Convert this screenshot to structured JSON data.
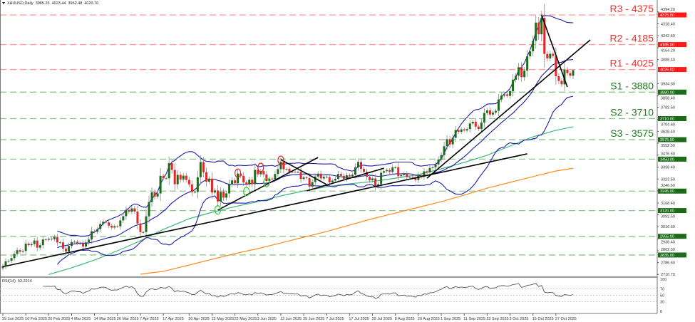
{
  "header": {
    "symbol": "XAUUSD,Daily",
    "open": "3985.23",
    "high": "4023.44",
    "low": "3962.48",
    "close": "4020.76"
  },
  "rsi_header": {
    "label": "RSI(14)",
    "value": "52.2214"
  },
  "colors": {
    "up": "#1e6b1e",
    "down": "#e3262b",
    "wick": "#8a8a8a",
    "bollinger": "#1c1ca8",
    "ma_green": "#3cb878",
    "ma_orange": "#ff8c1a",
    "resistance": "#ff2a2a",
    "support": "#1f7a1f",
    "trendline": "#000000",
    "rsi": "#555555"
  },
  "chart_data": [
    {
      "type": "candlestick",
      "title": "XAUUSD,Daily",
      "x_tick_labels": [
        "29 Jan 2025",
        "10 Feb 2025",
        "20 Feb 2025",
        "4 Mar 2025",
        "14 Mar 2025",
        "26 Mar 2025",
        "7 Apr 2025",
        "17 Apr 2025",
        "30 Apr 2025",
        "12 May 2025",
        "22 May 2025",
        "3 Jun 2025",
        "13 Jun 2025",
        "25 Jun 2025",
        "7 Jul 2025",
        "17 Jul 2025",
        "29 Jul 2025",
        "8 Aug 2025",
        "20 Aug 2025",
        "1 Sep 2025",
        "11 Sep 2025",
        "23 Sep 2025",
        "3 Oct 2025",
        "15 Oct 2025",
        "27 Oct 2025"
      ],
      "y_tick_labels": [
        "4394.20",
        "4318.40",
        "4242.50",
        "4164.20",
        "4088.40",
        "3934.30",
        "3858.40",
        "3782.50",
        "3704.60",
        "3628.40",
        "3552.50",
        "3476.60",
        "3398.40",
        "3322.50",
        "3246.60",
        "3168.40",
        "3092.50",
        "3016.60",
        "2938.40",
        "2862.50",
        "2786.60",
        "2710.70"
      ],
      "ylim": [
        2710.7,
        4394.2
      ],
      "grid": false,
      "closes": [
        2764,
        2795,
        2798,
        2815,
        2842,
        2866,
        2856,
        2861,
        2908,
        2898,
        2905,
        2928,
        2882,
        2898,
        2935,
        2933,
        2939,
        2936,
        2951,
        2915,
        2916,
        2876,
        2858,
        2893,
        2918,
        2920,
        2910,
        2910,
        2889,
        2916,
        2934,
        2988,
        2984,
        3001,
        3034,
        3048,
        3044,
        3023,
        3011,
        3020,
        3019,
        3057,
        3084,
        3124,
        3113,
        3134,
        3114,
        3037,
        2982,
        2982,
        3083,
        3175,
        3237,
        3210,
        3230,
        3343,
        3327,
        3327,
        3424,
        3381,
        3289,
        3349,
        3319,
        3344,
        3317,
        3288,
        3239,
        3240,
        3334,
        3431,
        3366,
        3306,
        3325,
        3236,
        3249,
        3179,
        3240,
        3203,
        3230,
        3289,
        3314,
        3295,
        3357,
        3343,
        3301,
        3288,
        3318,
        3289,
        3381,
        3353,
        3373,
        3352,
        3310,
        3325,
        3322,
        3355,
        3386,
        3433,
        3385,
        3388,
        3369,
        3369,
        3368,
        3368,
        3323,
        3333,
        3328,
        3274,
        3303,
        3338,
        3357,
        3326,
        3337,
        3335,
        3301,
        3313,
        3324,
        3355,
        3343,
        3324,
        3347,
        3339,
        3350,
        3397,
        3432,
        3387,
        3368,
        3337,
        3314,
        3326,
        3275,
        3289,
        3363,
        3373,
        3380,
        3368,
        3397,
        3398,
        3341,
        3348,
        3356,
        3335,
        3336,
        3332,
        3316,
        3348,
        3338,
        3372,
        3365,
        3393,
        3397,
        3416,
        3448,
        3476,
        3533,
        3578,
        3545,
        3587,
        3636,
        3625,
        3641,
        3634,
        3643,
        3679,
        3690,
        3659,
        3644,
        3685,
        3746,
        3763,
        3736,
        3749,
        3760,
        3833,
        3858,
        3866,
        3856,
        3886,
        3960,
        3985,
        4040,
        3976,
        4018,
        4110,
        4142,
        4209,
        4326,
        4251,
        4356,
        4125,
        4096,
        4126,
        4112,
        3982,
        3952,
        3930,
        4025,
        4002,
        3985.23,
        4020.76
      ],
      "indicators": {
        "bollinger": {
          "period": 20,
          "deviations": 2
        },
        "ma_green": [
          {
            "date": "20 Feb 2025",
            "value": 2710
          },
          {
            "date": "4 Mar 2025",
            "value": 2753
          },
          {
            "date": "14 Mar 2025",
            "value": 2803
          },
          {
            "date": "26 Mar 2025",
            "value": 2862
          },
          {
            "date": "7 Apr 2025",
            "value": 2926
          },
          {
            "date": "17 Apr 2025",
            "value": 2999
          },
          {
            "date": "30 Apr 2025",
            "value": 3068
          },
          {
            "date": "12 May 2025",
            "value": 3109
          },
          {
            "date": "22 May 2025",
            "value": 3145
          },
          {
            "date": "3 Jun 2025",
            "value": 3177
          },
          {
            "date": "13 Jun 2025",
            "value": 3214
          },
          {
            "date": "25 Jun 2025",
            "value": 3246
          },
          {
            "date": "7 Jul 2025",
            "value": 3273
          },
          {
            "date": "17 Jul 2025",
            "value": 3292
          },
          {
            "date": "29 Jul 2025",
            "value": 3306
          },
          {
            "date": "8 Aug 2025",
            "value": 3328
          },
          {
            "date": "20 Aug 2025",
            "value": 3351
          },
          {
            "date": "1 Sep 2025",
            "value": 3388
          },
          {
            "date": "11 Sep 2025",
            "value": 3429
          },
          {
            "date": "23 Sep 2025",
            "value": 3475
          },
          {
            "date": "3 Oct 2025",
            "value": 3534
          },
          {
            "date": "15 Oct 2025",
            "value": 3593
          },
          {
            "date": "27 Oct 2025",
            "value": 3635
          },
          {
            "date": "4 Nov 2025",
            "value": 3658
          }
        ],
        "ma_orange": [
          {
            "date": "7 Apr 2025",
            "value": 2712
          },
          {
            "date": "17 Apr 2025",
            "value": 2730
          },
          {
            "date": "30 Apr 2025",
            "value": 2771
          },
          {
            "date": "12 May 2025",
            "value": 2808
          },
          {
            "date": "22 May 2025",
            "value": 2844
          },
          {
            "date": "3 Jun 2025",
            "value": 2876
          },
          {
            "date": "13 Jun 2025",
            "value": 2912
          },
          {
            "date": "25 Jun 2025",
            "value": 2949
          },
          {
            "date": "7 Jul 2025",
            "value": 2986
          },
          {
            "date": "17 Jul 2025",
            "value": 3027
          },
          {
            "date": "29 Jul 2025",
            "value": 3068
          },
          {
            "date": "8 Aug 2025",
            "value": 3104
          },
          {
            "date": "20 Aug 2025",
            "value": 3141
          },
          {
            "date": "1 Sep 2025",
            "value": 3177
          },
          {
            "date": "11 Sep 2025",
            "value": 3219
          },
          {
            "date": "23 Sep 2025",
            "value": 3264
          },
          {
            "date": "3 Oct 2025",
            "value": 3301
          },
          {
            "date": "15 Oct 2025",
            "value": 3338
          },
          {
            "date": "27 Oct 2025",
            "value": 3374
          },
          {
            "date": "4 Nov 2025",
            "value": 3392
          }
        ]
      },
      "levels": [
        {
          "label": "R3 - 4375",
          "price": 4375,
          "tag": "4375.00",
          "kind": "resistance"
        },
        {
          "label": "R2 - 4185",
          "price": 4185,
          "tag": "4185.00",
          "kind": "resistance"
        },
        {
          "label": "R1 - 4025",
          "price": 4025,
          "tag": "4025.00",
          "kind": "resistance"
        },
        {
          "label": "S1 - 3880",
          "price": 3880,
          "tag": "3880.00",
          "kind": "support"
        },
        {
          "label": "S2 - 3710",
          "price": 3710,
          "tag": "3710.00",
          "kind": "support"
        },
        {
          "label": "S3 - 3575",
          "price": 3575,
          "tag": "3575.00",
          "kind": "support"
        },
        {
          "label": "",
          "price": 3450,
          "tag": "3450.00",
          "kind": "support"
        },
        {
          "label": "",
          "price": 3245,
          "tag": "3245.00",
          "kind": "support"
        },
        {
          "label": "",
          "price": 3120,
          "tag": "3120.00",
          "kind": "support"
        },
        {
          "label": "",
          "price": 2955,
          "tag": "2955.00",
          "kind": "support"
        },
        {
          "label": "",
          "price": 2835,
          "tag": "2835.00",
          "kind": "support"
        }
      ],
      "trendlines": [
        {
          "from": {
            "date": "29 Jan 2025",
            "price": 2760
          },
          "to": {
            "date": "13 Oct 2025",
            "price": 3484
          }
        },
        {
          "from": {
            "date": "25 Aug 2025",
            "price": 3328
          },
          "to": {
            "date": "12 Nov 2025",
            "price": 4215
          }
        },
        {
          "from": {
            "date": "14 May 2025",
            "price": 3123
          },
          "to": {
            "date": "2 Jul 2025",
            "price": 3461
          }
        },
        {
          "from": {
            "date": "13 Jun 2025",
            "price": 3447
          },
          "to": {
            "date": "7 Jul 2025",
            "price": 3287
          }
        },
        {
          "from": {
            "date": "26 Jun 2025",
            "price": 3246
          },
          "to": {
            "date": "4 Aug 2025",
            "price": 3392
          }
        },
        {
          "from": {
            "date": "20 Oct 2025",
            "price": 4375
          },
          "to": {
            "date": "31 Oct 2025",
            "price": 3913
          }
        }
      ],
      "markers": [
        {
          "date": "23 May 2025",
          "price": 3360,
          "color": "red"
        },
        {
          "date": "4 Jun 2025",
          "price": 3397,
          "color": "red"
        },
        {
          "date": "13 Jun 2025",
          "price": 3443,
          "color": "red"
        },
        {
          "date": "14 May 2025",
          "price": 3124,
          "color": "green"
        },
        {
          "date": "28 May 2025",
          "price": 3242,
          "color": "green"
        },
        {
          "date": "6 Jun 2025",
          "price": 3301,
          "color": "green"
        }
      ]
    },
    {
      "type": "line",
      "title": "RSI(14) 52.2214",
      "indicator": "RSI",
      "period": 14,
      "ylim": [
        0,
        100
      ],
      "y_tick_labels": [
        "100",
        "70",
        "50",
        "30",
        "0"
      ],
      "reference_levels": [
        70,
        50,
        30
      ]
    }
  ]
}
